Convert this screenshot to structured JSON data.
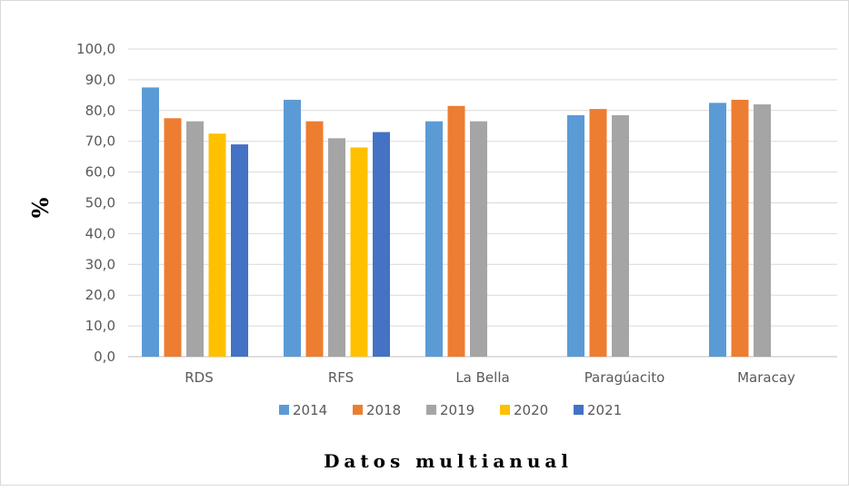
{
  "chart_data": {
    "type": "bar",
    "categories": [
      "RDS",
      "RFS",
      "La Bella",
      "Paragúacito",
      "Maracay"
    ],
    "series": [
      {
        "name": "2014",
        "color": "#5B9BD5",
        "values": [
          87.5,
          83.5,
          76.5,
          78.5,
          82.5
        ]
      },
      {
        "name": "2018",
        "color": "#ED7D31",
        "values": [
          77.5,
          76.5,
          81.5,
          80.5,
          83.5
        ]
      },
      {
        "name": "2019",
        "color": "#A5A5A5",
        "values": [
          76.5,
          71.0,
          76.5,
          78.5,
          82.0
        ]
      },
      {
        "name": "2020",
        "color": "#FFC000",
        "values": [
          72.5,
          68.0,
          null,
          null,
          null
        ]
      },
      {
        "name": "2021",
        "color": "#4472C4",
        "values": [
          69.0,
          73.0,
          null,
          null,
          null
        ]
      }
    ],
    "yticks": [
      "0,0",
      "10,0",
      "20,0",
      "30,0",
      "40,0",
      "50,0",
      "60,0",
      "70,0",
      "80,0",
      "90,0",
      "100,0"
    ],
    "ylim": [
      0,
      100
    ],
    "ylabel": "%",
    "xlabel": "Datos multianual",
    "title": "",
    "grid": true,
    "legend_position": "bottom"
  }
}
